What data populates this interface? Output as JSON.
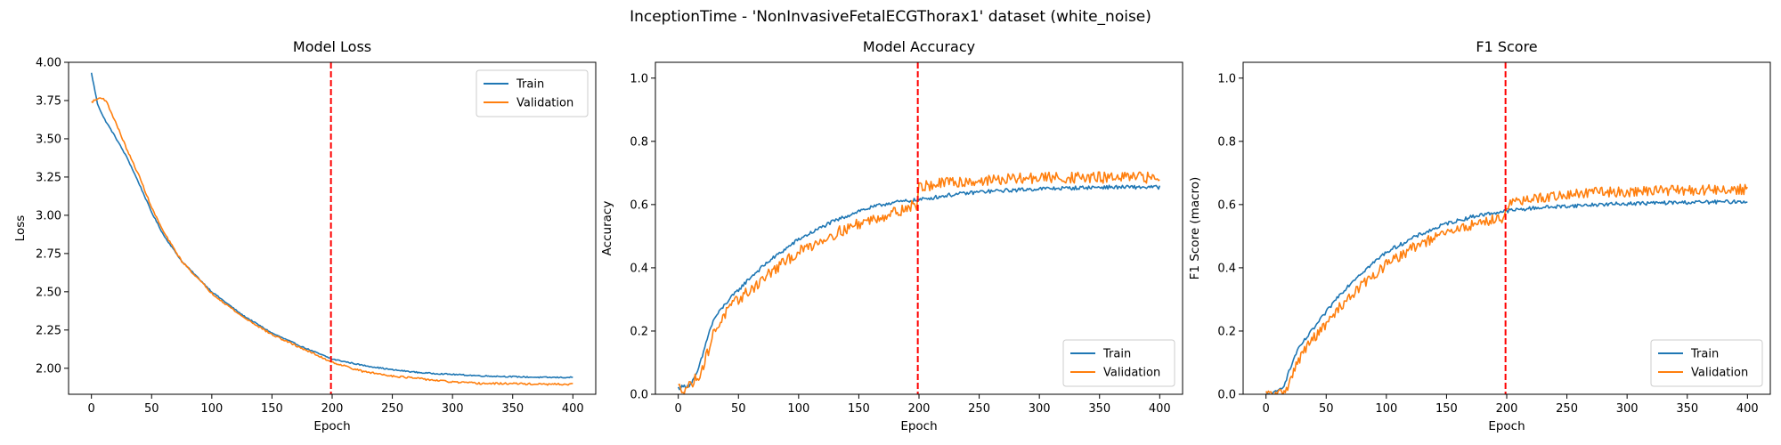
{
  "figure": {
    "suptitle": "InceptionTime - 'NonInvasiveFetalECGThorax1' dataset (white_noise)"
  },
  "chart_data": [
    {
      "type": "line",
      "title": "Model Loss",
      "xlabel": "Epoch",
      "ylabel": "Loss",
      "xlim": [
        -19,
        419
      ],
      "ylim": [
        1.83,
        4.0
      ],
      "xticks": [
        0,
        50,
        100,
        150,
        200,
        250,
        300,
        350,
        400
      ],
      "yticks": [
        2.0,
        2.25,
        2.5,
        2.75,
        3.0,
        3.25,
        3.5,
        3.75,
        4.0
      ],
      "ytick_decimals": 2,
      "vline_x": 199,
      "vline_color": "#ff0000",
      "legend_loc": "upper right",
      "series": [
        {
          "name": "Train",
          "color": "#1f77b4",
          "noise": 0.004,
          "x": [
            0,
            5,
            10,
            20,
            30,
            40,
            50,
            60,
            75,
            100,
            125,
            150,
            175,
            200,
            225,
            250,
            275,
            300,
            325,
            350,
            375,
            400
          ],
          "values": [
            3.93,
            3.73,
            3.64,
            3.51,
            3.37,
            3.2,
            3.02,
            2.87,
            2.7,
            2.5,
            2.35,
            2.23,
            2.14,
            2.06,
            2.02,
            1.99,
            1.97,
            1.96,
            1.95,
            1.945,
            1.94,
            1.94
          ]
        },
        {
          "name": "Validation",
          "color": "#ff7f0e",
          "noise": 0.006,
          "x": [
            0,
            5,
            8,
            12,
            20,
            30,
            40,
            50,
            60,
            75,
            100,
            125,
            150,
            175,
            200,
            225,
            250,
            275,
            300,
            325,
            350,
            375,
            400
          ],
          "values": [
            3.74,
            3.76,
            3.77,
            3.75,
            3.61,
            3.42,
            3.25,
            3.05,
            2.89,
            2.7,
            2.49,
            2.34,
            2.22,
            2.13,
            2.04,
            1.98,
            1.95,
            1.93,
            1.91,
            1.9,
            1.9,
            1.895,
            1.895
          ]
        }
      ]
    },
    {
      "type": "line",
      "title": "Model Accuracy",
      "xlabel": "Epoch",
      "ylabel": "Accuracy",
      "xlim": [
        -19,
        419
      ],
      "ylim": [
        0,
        1.05
      ],
      "xticks": [
        0,
        50,
        100,
        150,
        200,
        250,
        300,
        350,
        400
      ],
      "yticks": [
        0.0,
        0.2,
        0.4,
        0.6,
        0.8,
        1.0
      ],
      "ytick_decimals": 1,
      "vline_x": 199,
      "vline_color": "#ff0000",
      "legend_loc": "lower right",
      "series": [
        {
          "name": "Train",
          "color": "#1f77b4",
          "noise": 0.006,
          "x": [
            0,
            5,
            10,
            15,
            20,
            25,
            30,
            40,
            50,
            60,
            75,
            100,
            125,
            150,
            175,
            200,
            225,
            250,
            275,
            300,
            325,
            350,
            375,
            400
          ],
          "values": [
            0.02,
            0.025,
            0.03,
            0.06,
            0.12,
            0.19,
            0.24,
            0.29,
            0.33,
            0.37,
            0.42,
            0.49,
            0.54,
            0.58,
            0.605,
            0.615,
            0.63,
            0.64,
            0.645,
            0.65,
            0.652,
            0.655,
            0.655,
            0.655
          ]
        },
        {
          "name": "Validation",
          "color": "#ff7f0e",
          "noise": 0.018,
          "x": [
            0,
            5,
            10,
            15,
            20,
            25,
            30,
            40,
            50,
            60,
            75,
            100,
            125,
            150,
            175,
            198,
            200,
            225,
            250,
            275,
            300,
            325,
            350,
            375,
            400
          ],
          "values": [
            0.02,
            0.02,
            0.03,
            0.05,
            0.08,
            0.14,
            0.2,
            0.26,
            0.3,
            0.33,
            0.38,
            0.45,
            0.5,
            0.54,
            0.57,
            0.6,
            0.655,
            0.67,
            0.675,
            0.68,
            0.685,
            0.685,
            0.685,
            0.685,
            0.685
          ]
        }
      ]
    },
    {
      "type": "line",
      "title": "F1 Score",
      "xlabel": "Epoch",
      "ylabel": "F1 Score (macro)",
      "xlim": [
        -19,
        419
      ],
      "ylim": [
        0,
        1.05
      ],
      "xticks": [
        0,
        50,
        100,
        150,
        200,
        250,
        300,
        350,
        400
      ],
      "yticks": [
        0.0,
        0.2,
        0.4,
        0.6,
        0.8,
        1.0
      ],
      "ytick_decimals": 1,
      "vline_x": 199,
      "vline_color": "#ff0000",
      "legend_loc": "lower right",
      "series": [
        {
          "name": "Train",
          "color": "#1f77b4",
          "noise": 0.006,
          "x": [
            0,
            5,
            10,
            15,
            20,
            25,
            30,
            40,
            50,
            60,
            75,
            100,
            125,
            150,
            175,
            200,
            225,
            250,
            275,
            300,
            325,
            350,
            375,
            400
          ],
          "values": [
            0.0,
            0.0,
            0.01,
            0.03,
            0.08,
            0.13,
            0.16,
            0.21,
            0.26,
            0.31,
            0.37,
            0.45,
            0.5,
            0.54,
            0.565,
            0.58,
            0.59,
            0.595,
            0.6,
            0.603,
            0.605,
            0.607,
            0.608,
            0.61
          ]
        },
        {
          "name": "Validation",
          "color": "#ff7f0e",
          "noise": 0.016,
          "x": [
            0,
            5,
            10,
            15,
            20,
            25,
            30,
            40,
            50,
            60,
            75,
            100,
            125,
            150,
            175,
            198,
            200,
            225,
            250,
            275,
            300,
            325,
            350,
            375,
            400
          ],
          "values": [
            0.0,
            0.0,
            0.0,
            0.01,
            0.04,
            0.09,
            0.13,
            0.18,
            0.22,
            0.27,
            0.33,
            0.41,
            0.47,
            0.51,
            0.54,
            0.56,
            0.6,
            0.62,
            0.63,
            0.64,
            0.64,
            0.645,
            0.645,
            0.647,
            0.648
          ]
        }
      ]
    }
  ]
}
